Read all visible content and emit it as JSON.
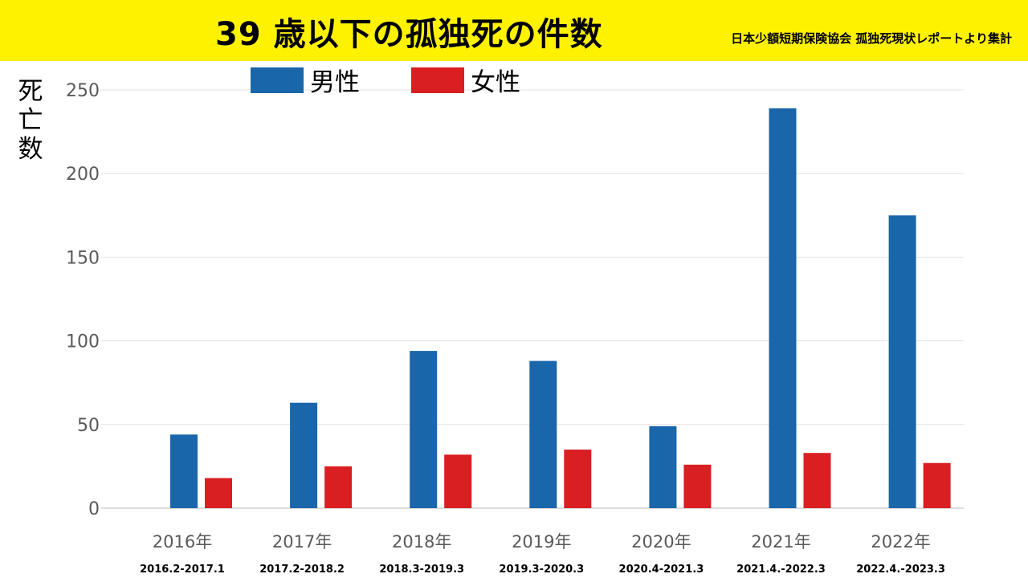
{
  "header": {
    "title": "39 歳以下の孤独死の件数",
    "source": "日本少額短期保険協会 孤独死現状レポートより集計"
  },
  "colors": {
    "banner": "#fff200",
    "male": "#1a66aa",
    "female": "#d91f22"
  },
  "chart_data": {
    "type": "bar",
    "title": "39 歳以下の孤独死の件数",
    "ylabel": "死亡数",
    "ylabel_chars": [
      "死",
      "亡",
      "数"
    ],
    "xlabel": "",
    "ylim": [
      0,
      250
    ],
    "yticks": [
      0,
      50,
      100,
      150,
      200,
      250
    ],
    "grid": true,
    "legend_position": "top",
    "categories": [
      {
        "year": "2016年",
        "period": "2016.2-2017.1"
      },
      {
        "year": "2017年",
        "period": "2017.2-2018.2"
      },
      {
        "year": "2018年",
        "period": "2018.3-2019.3"
      },
      {
        "year": "2019年",
        "period": "2019.3-2020.3"
      },
      {
        "year": "2020年",
        "period": "2020.4-2021.3"
      },
      {
        "year": "2021年",
        "period": "2021.4.-2022.3"
      },
      {
        "year": "2022年",
        "period": "2022.4.-2023.3"
      }
    ],
    "series": [
      {
        "name": "男性",
        "color": "#1a66aa",
        "values": [
          44,
          63,
          94,
          88,
          49,
          239,
          175
        ]
      },
      {
        "name": "女性",
        "color": "#d91f22",
        "values": [
          18,
          25,
          32,
          35,
          26,
          33,
          27
        ]
      }
    ]
  }
}
